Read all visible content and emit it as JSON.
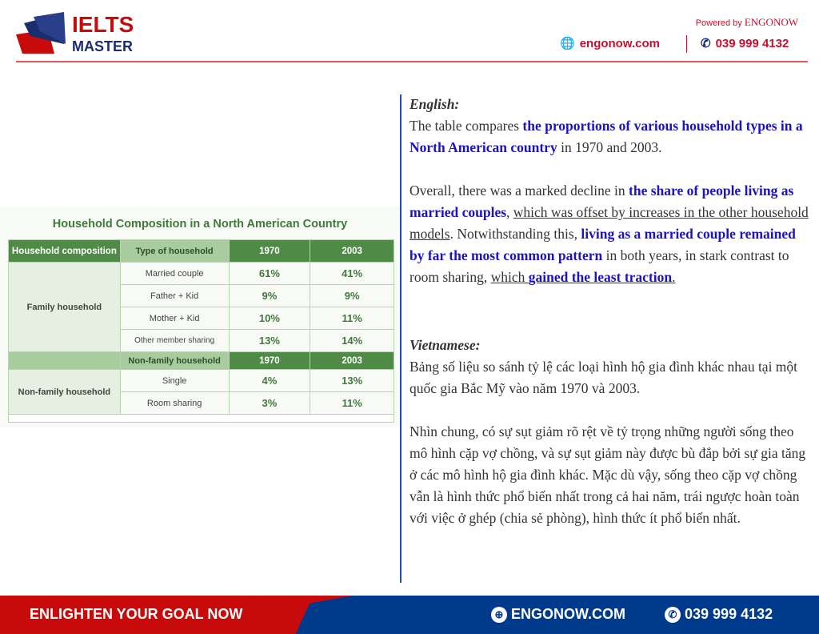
{
  "header": {
    "logo_line1": "IELTS",
    "logo_line2": "MASTER",
    "powered_prefix": "Powered by",
    "powered_brand": "ENGONOW",
    "website": "engonow.com",
    "phone": "039 999 4132",
    "website_icon": "globe-icon",
    "phone_icon": "phone-icon"
  },
  "table": {
    "title": "Household Composition in a North American Country",
    "header": [
      "Household composition",
      "Type of household",
      "1970",
      "2003"
    ],
    "family_group": "Family household",
    "family_rows": [
      [
        "Married couple",
        "61%",
        "41%"
      ],
      [
        "Father + Kid",
        "9%",
        "9%"
      ],
      [
        "Mother + Kid",
        "10%",
        "11%"
      ],
      [
        "Other member sharing",
        "13%",
        "14%"
      ]
    ],
    "nonfamily_header": [
      "Non-family household",
      "1970",
      "2003"
    ],
    "nonfamily_group": "Non-family household",
    "nonfamily_rows": [
      [
        "Single",
        "4%",
        "13%"
      ],
      [
        "Room sharing",
        "3%",
        "11%"
      ]
    ]
  },
  "english": {
    "label": "English:",
    "p1": [
      {
        "t": "The table compares "
      },
      {
        "t": "the proportions of various household types in a North American country",
        "s": "hi"
      },
      {
        "t": " in 1970 and 2003."
      }
    ],
    "p2": [
      {
        "t": "Overall, there was a marked decline in "
      },
      {
        "t": "the share of people living as married couples",
        "s": "hi"
      },
      {
        "t": ", "
      },
      {
        "t": "which was offset by increases in the other household models",
        "s": "ul"
      },
      {
        "t": ". Notwithstanding this, "
      },
      {
        "t": "living as a married couple remained by far the most common pattern",
        "s": "hi"
      },
      {
        "t": " in both years, in stark contrast to room sharing, "
      },
      {
        "t": "which ",
        "s": "ul"
      },
      {
        "t": "gained the least traction",
        "s": "hi ul"
      },
      {
        "t": ".",
        "s": "ul"
      }
    ]
  },
  "vietnamese": {
    "label": "Vietnamese:",
    "p1": "Bảng số liệu so sánh tỷ lệ các loại hình hộ gia đình khác nhau tại một quốc gia Bắc Mỹ vào năm 1970 và 2003.",
    "p2": "Nhìn chung, có sự sụt giảm rõ rệt về tỷ trọng những người sống theo mô hình cặp vợ chồng, và sự sụt giảm này được bù đắp bởi sự gia tăng ở các mô hình hộ gia đình khác. Mặc dù vậy, sống theo cặp vợ chồng vẫn là hình thức phổ biến nhất trong cả hai năm, trái ngược hoàn toàn với việc ở ghép (chia sẻ phòng), hình thức ít phổ biến nhất."
  },
  "footer": {
    "slogan": "ENLIGHTEN YOUR GOAL NOW",
    "website": "ENGONOW.COM",
    "phone": "039 999 4132"
  },
  "colors": {
    "brand_red": "#c90a0a",
    "brand_blue": "#003a8c",
    "table_green": "#4f8a46",
    "highlight": "#1d12c4"
  }
}
